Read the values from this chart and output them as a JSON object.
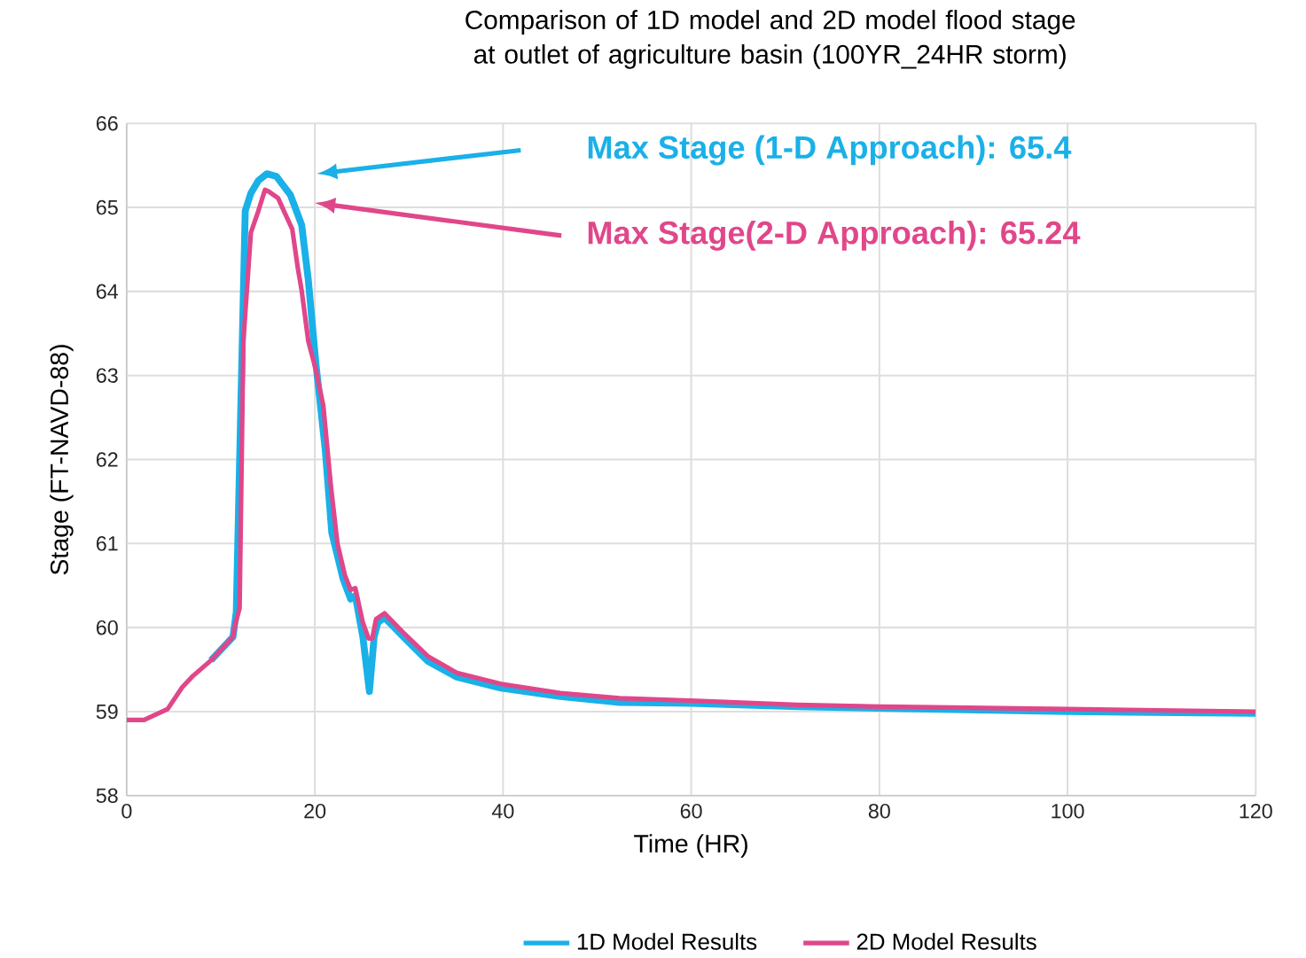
{
  "chart_data": {
    "type": "line",
    "title": "Comparison of 1D model and 2D model flood stage at outlet of agriculture basin (100YR_24HR storm)",
    "xlabel": "Time (HR)",
    "ylabel": "Stage (FT-NAVD-88)",
    "xlim": [
      0,
      120
    ],
    "ylim": [
      58,
      66
    ],
    "xticks": [
      0,
      20,
      40,
      60,
      80,
      100,
      120
    ],
    "yticks": [
      58,
      59,
      60,
      61,
      62,
      63,
      64,
      65,
      66
    ],
    "grid": true,
    "legend": "bottom",
    "marker": "none",
    "line_style": "solid",
    "annotations": [
      "Max Stage (1-D Approach): 65.4",
      "Max Stage(2-D Approach): 65.24"
    ],
    "series": [
      {
        "name": "1D Model Results",
        "color": "#1ab0e8",
        "x": [
          8.96,
          11.3,
          11.65,
          12.2,
          12.6,
          13.2,
          14.0,
          14.9,
          15.9,
          17.4,
          18.6,
          19.3,
          20.1,
          21.1,
          21.8,
          23.0,
          23.8,
          24.3,
          25.1,
          25.8,
          26.3,
          26.7,
          27.4,
          29.4,
          32.0,
          35.1,
          39.8,
          46.1,
          52.4,
          60,
          71.3,
          80,
          100,
          120
        ],
        "values": [
          59.61,
          59.89,
          60.19,
          62.98,
          64.96,
          65.17,
          65.32,
          65.4,
          65.37,
          65.15,
          64.79,
          64.14,
          63.15,
          62.12,
          61.13,
          60.58,
          60.34,
          60.38,
          59.89,
          59.24,
          59.89,
          60.06,
          60.12,
          59.89,
          59.6,
          59.41,
          59.28,
          59.18,
          59.11,
          59.1,
          59.06,
          59.04,
          59.0,
          58.98
        ]
      },
      {
        "name": "2D Model Results",
        "color": "#e0478a",
        "x": [
          0,
          1.85,
          4.35,
          5.9,
          7.0,
          8.96,
          11.3,
          11.5,
          12.0,
          12.4,
          13.2,
          14.0,
          14.7,
          15.1,
          16.1,
          16.7,
          17.6,
          18.2,
          18.6,
          19.3,
          20.1,
          20.9,
          21.7,
          22.4,
          23.2,
          23.8,
          24.3,
          25.1,
          25.7,
          26.1,
          26.5,
          27.4,
          29.4,
          32.0,
          35.1,
          39.8,
          46.1,
          52.4,
          60,
          71.3,
          80,
          100,
          120
        ],
        "values": [
          58.9,
          58.9,
          59.03,
          59.29,
          59.42,
          59.61,
          59.89,
          60.02,
          60.23,
          63.41,
          64.7,
          64.96,
          65.21,
          65.19,
          65.11,
          64.96,
          64.74,
          64.27,
          64.01,
          63.41,
          63.07,
          62.64,
          61.69,
          61.0,
          60.62,
          60.45,
          60.47,
          60.06,
          59.87,
          59.87,
          60.1,
          60.17,
          59.94,
          59.66,
          59.46,
          59.33,
          59.22,
          59.16,
          59.13,
          59.08,
          59.06,
          59.03,
          59.0
        ]
      }
    ]
  }
}
